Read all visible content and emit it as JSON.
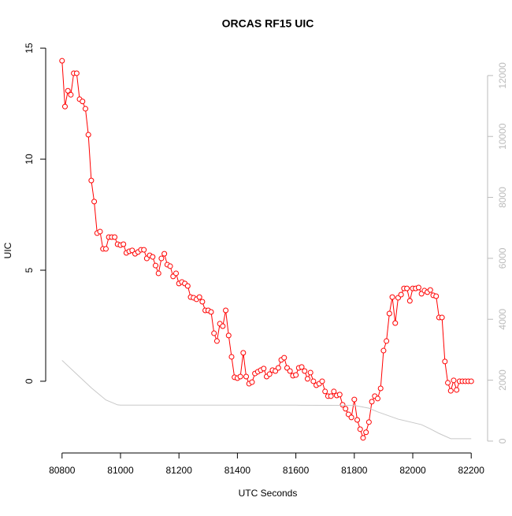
{
  "chart_data": {
    "type": "line",
    "title": "ORCAS RF15 UIC",
    "x_label": "UTC Seconds",
    "y_label": "UIC",
    "xlim": [
      80744,
      82256
    ],
    "xticks": [
      80800,
      81000,
      81200,
      81400,
      81600,
      81800,
      82000,
      82200
    ],
    "ylim": [
      -3.23,
      15.11
    ],
    "yticks": [
      0,
      5,
      10,
      15
    ],
    "y2lim": [
      -390,
      12980
    ],
    "y2ticks": [
      0,
      2000,
      4000,
      6000,
      8000,
      10000,
      12000
    ],
    "series": [
      {
        "color": "#ff0000",
        "markers": true,
        "x": [
          80800,
          80810,
          80820,
          80830,
          80840,
          80850,
          80860,
          80870,
          80880,
          80890,
          80900,
          80910,
          80920,
          80930,
          80940,
          80950,
          80960,
          80970,
          80980,
          80990,
          81000,
          81010,
          81020,
          81030,
          81040,
          81050,
          81060,
          81070,
          81080,
          81090,
          81100,
          81110,
          81120,
          81130,
          81140,
          81150,
          81160,
          81170,
          81180,
          81190,
          81200,
          81210,
          81220,
          81230,
          81240,
          81250,
          81260,
          81270,
          81280,
          81290,
          81300,
          81310,
          81320,
          81330,
          81340,
          81350,
          81360,
          81370,
          81380,
          81390,
          81400,
          81410,
          81420,
          81430,
          81440,
          81450,
          81460,
          81470,
          81480,
          81490,
          81500,
          81510,
          81520,
          81530,
          81540,
          81550,
          81560,
          81570,
          81580,
          81590,
          81600,
          81610,
          81620,
          81630,
          81640,
          81650,
          81660,
          81670,
          81680,
          81690,
          81700,
          81710,
          81720,
          81730,
          81740,
          81750,
          81760,
          81770,
          81780,
          81790,
          81800,
          81810,
          81820,
          81830,
          81840,
          81850,
          81860,
          81870,
          81880,
          81890,
          81900,
          81910,
          81920,
          81930,
          81940,
          81950,
          81960,
          81970,
          81980,
          81990,
          82000,
          82010,
          82020,
          82030,
          82040,
          82050,
          82060,
          82070,
          82080,
          82090,
          82100,
          82110,
          82120,
          82130,
          82140,
          82150,
          82160,
          82170,
          82180,
          82190,
          82200
        ],
        "values": [
          14.43,
          12.37,
          13.08,
          12.9,
          13.87,
          13.87,
          12.7,
          12.6,
          12.27,
          11.1,
          9.04,
          8.09,
          6.67,
          6.74,
          5.96,
          5.96,
          6.49,
          6.49,
          6.49,
          6.17,
          6.13,
          6.17,
          5.78,
          5.85,
          5.89,
          5.74,
          5.82,
          5.92,
          5.92,
          5.53,
          5.67,
          5.6,
          5.21,
          4.86,
          5.53,
          5.74,
          5.25,
          5.18,
          4.72,
          4.86,
          4.4,
          4.47,
          4.4,
          4.29,
          3.79,
          3.76,
          3.69,
          3.79,
          3.58,
          3.19,
          3.19,
          3.12,
          2.16,
          1.81,
          2.59,
          2.48,
          3.19,
          2.06,
          1.1,
          0.18,
          0.14,
          0.21,
          1.28,
          0.21,
          -0.11,
          -0.04,
          0.35,
          0.43,
          0.5,
          0.57,
          0.21,
          0.32,
          0.5,
          0.46,
          0.6,
          0.96,
          1.06,
          0.6,
          0.46,
          0.25,
          0.28,
          0.6,
          0.64,
          0.46,
          0.11,
          0.39,
          0,
          -0.18,
          -0.11,
          0,
          -0.46,
          -0.67,
          -0.67,
          -0.46,
          -0.64,
          -0.6,
          -1.06,
          -1.24,
          -1.49,
          -1.63,
          -0.82,
          -1.74,
          -2.16,
          -2.55,
          -2.3,
          -1.84,
          -0.92,
          -0.67,
          -0.78,
          -0.32,
          1.38,
          1.81,
          3.05,
          3.79,
          2.62,
          3.76,
          3.9,
          4.18,
          4.18,
          3.62,
          4.18,
          4.18,
          4.22,
          3.94,
          4.08,
          4.01,
          4.11,
          3.87,
          3.83,
          2.87,
          2.87,
          0.89,
          -0.07,
          -0.43,
          0.04,
          -0.39,
          0,
          0,
          0,
          0,
          0
        ]
      },
      {
        "color": "#c8c8c8",
        "axis": "y2",
        "markers": false,
        "x": [
          80800,
          80850,
          80900,
          80950,
          80990,
          81000,
          81200,
          81400,
          81600,
          81800,
          81850,
          81880,
          81950,
          82030,
          82060,
          82090,
          82130,
          82200
        ],
        "values": [
          2650,
          2200,
          1750,
          1350,
          1190,
          1180,
          1180,
          1180,
          1180,
          1170,
          1080,
          960,
          720,
          540,
          400,
          250,
          80,
          80
        ]
      }
    ]
  }
}
